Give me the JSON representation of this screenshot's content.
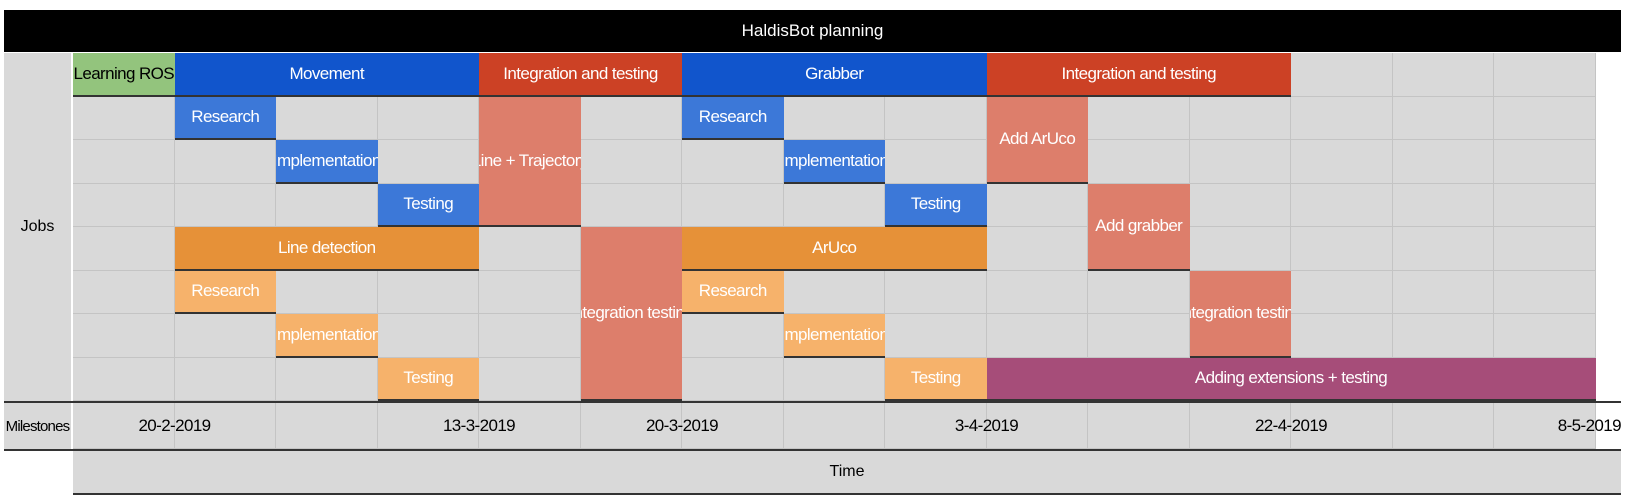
{
  "title": "HaldisBot planning",
  "row_labels": {
    "jobs": "Jobs",
    "milestones": "Milestones",
    "time": "Time"
  },
  "colors": {
    "learning": "#93c47d",
    "blue_header": "#1155cc",
    "blue_task": "#3c78d8",
    "integration": "#cc4125",
    "integration_light": "#dd7e6b",
    "orange": "#e69138",
    "orange_light": "#f6b26b",
    "purple": "#a64d79",
    "grid": "#d9d9d9"
  },
  "tasks": [
    {
      "label": "Learning ROS",
      "color": "learning",
      "start": 0,
      "end": 1,
      "row": 0,
      "rows": 1
    },
    {
      "label": "Movement",
      "color": "blue_header",
      "start": 1,
      "end": 4,
      "row": 0,
      "rows": 1
    },
    {
      "label": "Integration and testing",
      "color": "integration",
      "start": 4,
      "end": 6,
      "row": 0,
      "rows": 1
    },
    {
      "label": "Grabber",
      "color": "blue_header",
      "start": 6,
      "end": 9,
      "row": 0,
      "rows": 1
    },
    {
      "label": "Integration and testing",
      "color": "integration",
      "start": 9,
      "end": 12,
      "row": 0,
      "rows": 1
    },
    {
      "label": "Research",
      "color": "blue_task",
      "start": 1,
      "end": 2,
      "row": 1,
      "rows": 1
    },
    {
      "label": "Implementation",
      "color": "blue_task",
      "start": 2,
      "end": 3,
      "row": 2,
      "rows": 1
    },
    {
      "label": "Testing",
      "color": "blue_task",
      "start": 3,
      "end": 4,
      "row": 3,
      "rows": 1
    },
    {
      "label": "Line + Trajectory",
      "color": "integration_light",
      "start": 4,
      "end": 5,
      "row": 1,
      "rows": 3
    },
    {
      "label": "Research",
      "color": "blue_task",
      "start": 6,
      "end": 7,
      "row": 1,
      "rows": 1
    },
    {
      "label": "Implementation",
      "color": "blue_task",
      "start": 7,
      "end": 8,
      "row": 2,
      "rows": 1
    },
    {
      "label": "Testing",
      "color": "blue_task",
      "start": 8,
      "end": 9,
      "row": 3,
      "rows": 1
    },
    {
      "label": "Add ArUco",
      "color": "integration_light",
      "start": 9,
      "end": 10,
      "row": 1,
      "rows": 2
    },
    {
      "label": "Add grabber",
      "color": "integration_light",
      "start": 10,
      "end": 11,
      "row": 3,
      "rows": 2
    },
    {
      "label": "Line detection",
      "color": "orange",
      "start": 1,
      "end": 4,
      "row": 4,
      "rows": 1
    },
    {
      "label": "Integration testing",
      "color": "integration_light",
      "start": 5,
      "end": 6,
      "row": 4,
      "rows": 4
    },
    {
      "label": "ArUco",
      "color": "orange",
      "start": 6,
      "end": 9,
      "row": 4,
      "rows": 1
    },
    {
      "label": "Research",
      "color": "orange_light",
      "start": 1,
      "end": 2,
      "row": 5,
      "rows": 1
    },
    {
      "label": "Implementation",
      "color": "orange_light",
      "start": 2,
      "end": 3,
      "row": 6,
      "rows": 1
    },
    {
      "label": "Testing",
      "color": "orange_light",
      "start": 3,
      "end": 4,
      "row": 7,
      "rows": 1
    },
    {
      "label": "Research",
      "color": "orange_light",
      "start": 6,
      "end": 7,
      "row": 5,
      "rows": 1
    },
    {
      "label": "Implementation",
      "color": "orange_light",
      "start": 7,
      "end": 8,
      "row": 6,
      "rows": 1
    },
    {
      "label": "Testing",
      "color": "orange_light",
      "start": 8,
      "end": 9,
      "row": 7,
      "rows": 1
    },
    {
      "label": "Integration testing",
      "color": "integration_light",
      "start": 11,
      "end": 12,
      "row": 5,
      "rows": 2
    },
    {
      "label": "Adding extensions + testing",
      "color": "purple",
      "start": 9,
      "end": 15,
      "row": 7,
      "rows": 1
    }
  ],
  "milestones": [
    {
      "label": "20-2-2019",
      "at": 1
    },
    {
      "label": "13-3-2019",
      "at": 4
    },
    {
      "label": "20-3-2019",
      "at": 6
    },
    {
      "label": "3-4-2019",
      "at": 9
    },
    {
      "label": "22-4-2019",
      "at": 12
    },
    {
      "label": "8-5-2019",
      "at": 15
    }
  ]
}
